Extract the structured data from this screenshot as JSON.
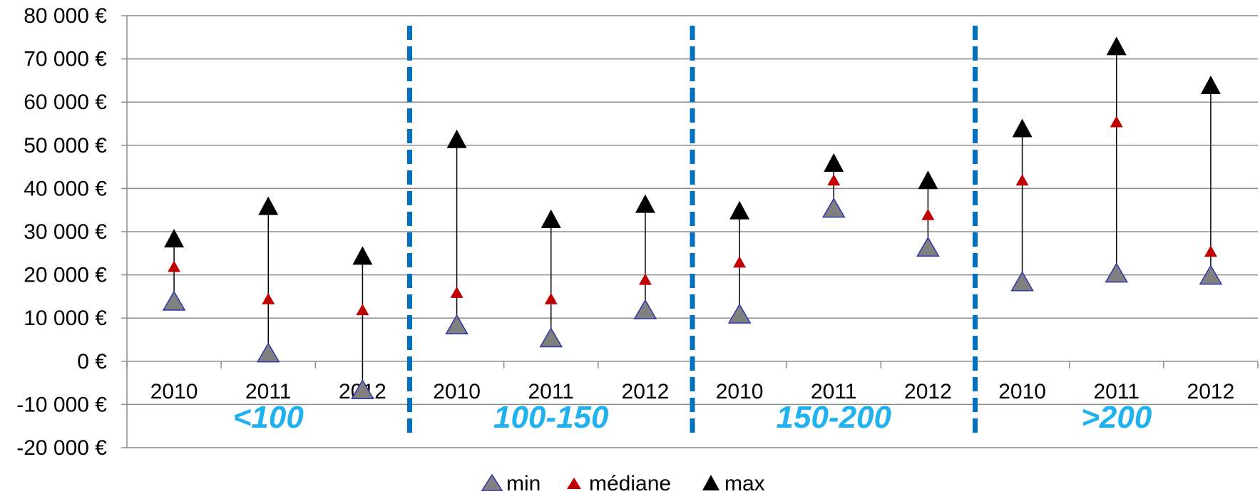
{
  "chart_data": {
    "type": "scatter",
    "title": "",
    "ylim": [
      -20000,
      80000
    ],
    "y_ticks": [
      {
        "value": 80000,
        "label": "80 000 €"
      },
      {
        "value": 70000,
        "label": "70 000 €"
      },
      {
        "value": 60000,
        "label": "60 000 €"
      },
      {
        "value": 50000,
        "label": "50 000 €"
      },
      {
        "value": 40000,
        "label": "40 000 €"
      },
      {
        "value": 30000,
        "label": "30 000 €"
      },
      {
        "value": 20000,
        "label": "20 000 €"
      },
      {
        "value": 10000,
        "label": "10 000 €"
      },
      {
        "value": 0,
        "label": "0 €"
      },
      {
        "value": -10000,
        "label": "-10 000 €"
      },
      {
        "value": -20000,
        "label": "-20 000 €"
      }
    ],
    "grid": true,
    "categories": [
      "2010",
      "2011",
      "2012",
      "2010",
      "2011",
      "2012",
      "2010",
      "2011",
      "2012",
      "2010",
      "2011",
      "2012"
    ],
    "groups": [
      "<100",
      "100-150",
      "150-200",
      ">200"
    ],
    "series": [
      {
        "name": "min",
        "color": "#808080",
        "edge_color": "#2e35a8",
        "values": [
          14000,
          2000,
          -6500,
          8500,
          5500,
          12000,
          11000,
          35500,
          26500,
          18500,
          20500,
          20000
        ]
      },
      {
        "name": "médiane",
        "color": "#c00000",
        "values": [
          22000,
          14500,
          12000,
          16000,
          14500,
          19000,
          23000,
          42000,
          34000,
          42000,
          55500,
          25500
        ]
      },
      {
        "name": "max",
        "color": "#000000",
        "values": [
          28500,
          36000,
          24500,
          51500,
          33000,
          36500,
          35000,
          46000,
          42000,
          54000,
          73000,
          64000
        ]
      }
    ],
    "separator_color": "#0070c0",
    "group_label_color": "#1fb2ee",
    "legend_position": "bottom"
  }
}
